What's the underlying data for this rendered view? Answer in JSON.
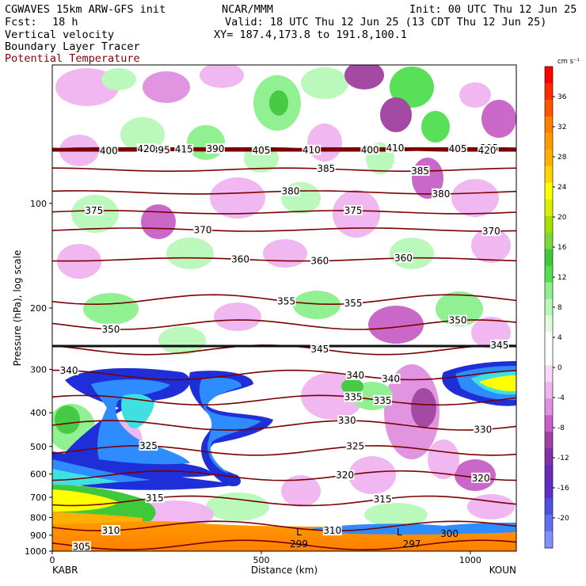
{
  "header": {
    "model": "CGWAVES 15km ARW-GFS init",
    "org": "NCAR/MMM",
    "init": "Init: 00 UTC Thu 12 Jun 25",
    "fcst_label": "Fcst:",
    "fcst_value": "18 h",
    "valid": "Valid: 18 UTC Thu 12 Jun 25 (13 CDT Thu 12 Jun 25)",
    "xy": "XY= 187.4,173.8 to 191.8,100.1",
    "field1": "Vertical velocity",
    "field2": "Boundary Layer Tracer",
    "field3": "Potential Temperature"
  },
  "colors": {
    "theta_line": "#7a0000",
    "tracer_dark": "#1e2fd8",
    "tracer_mid": "#2f8cff",
    "tracer_light": "#40e0e0"
  },
  "chart_data": {
    "type": "heatmap",
    "title": "",
    "xlabel": "Distance (km)",
    "ylabel": "Pressure (hPa), log scale",
    "x_start_label": "KABR",
    "x_end_label": "KOUN",
    "xlim": [
      0,
      1110
    ],
    "x_ticks": [
      0,
      500,
      1000
    ],
    "ylim_hpa": [
      1000,
      40
    ],
    "y_ticks": [
      100,
      200,
      300,
      400,
      500,
      600,
      700,
      800,
      900,
      1000
    ],
    "colorbar": {
      "units": "cm s⁻¹",
      "ticks": [
        36,
        32,
        28,
        24,
        20,
        16,
        12,
        8,
        4,
        0,
        -4,
        -8,
        -12,
        -16,
        -20
      ],
      "colors": [
        "#ff0000",
        "#ff2a00",
        "#ff5400",
        "#ff7f00",
        "#ff9a00",
        "#ffb000",
        "#ffd400",
        "#ffff00",
        "#d8f000",
        "#a8e000",
        "#7cd83a",
        "#3ec83a",
        "#50e050",
        "#8cf08c",
        "#b8f8b8",
        "#e0fce0",
        "#ffffff",
        "#ffffff",
        "#f8d8f8",
        "#f0b4f0",
        "#e090e0",
        "#c860c8",
        "#a040a0",
        "#8030a8",
        "#6a2ab8",
        "#5a30c8",
        "#5050e0",
        "#6070f0",
        "#8090ff"
      ]
    },
    "theta_contours": [
      {
        "value": 305,
        "label_x": [
          70
        ]
      },
      {
        "value": 310,
        "label_x": [
          140,
          670
        ]
      },
      {
        "value": 315,
        "label_x": [
          245,
          790
        ]
      },
      {
        "value": 320,
        "label_x": [
          700,
          1025
        ]
      },
      {
        "value": 325,
        "label_x": [
          230,
          725
        ]
      },
      {
        "value": 330,
        "label_x": [
          705,
          1030
        ]
      },
      {
        "value": 335,
        "label_x": [
          720,
          790
        ]
      },
      {
        "value": 340,
        "label_x": [
          40,
          725,
          810
        ]
      },
      {
        "value": 345,
        "label_x": [
          640,
          1070
        ]
      },
      {
        "value": 350,
        "label_x": [
          140,
          970
        ]
      },
      {
        "value": 355,
        "label_x": [
          560,
          720
        ]
      },
      {
        "value": 360,
        "label_x": [
          450,
          640,
          840
        ]
      },
      {
        "value": 370,
        "label_x": [
          360,
          1050
        ]
      },
      {
        "value": 375,
        "label_x": [
          100,
          720
        ]
      },
      {
        "value": 380,
        "label_x": [
          570,
          930
        ]
      },
      {
        "value": 385,
        "label_x": [
          655,
          880
        ]
      },
      {
        "value": 390,
        "label_x": [
          390
        ]
      },
      {
        "value": 395,
        "label_x": [
          260,
          1045
        ]
      },
      {
        "value": 400,
        "label_x": [
          135,
          760
        ]
      },
      {
        "value": 405,
        "label_x": [
          500,
          970
        ]
      },
      {
        "value": 410,
        "label_x": [
          620,
          820
        ]
      },
      {
        "value": 415,
        "label_x": [
          315
        ]
      },
      {
        "value": 420,
        "label_x": [
          225,
          1040
        ]
      }
    ],
    "surface_theta_labels": [
      {
        "value": 299,
        "x": 590
      },
      {
        "value": 297,
        "x": 860
      },
      {
        "value": 300,
        "x": 950
      }
    ],
    "low_markers": [
      {
        "label": "L",
        "x": 590
      },
      {
        "label": "L",
        "x": 830
      }
    ]
  }
}
